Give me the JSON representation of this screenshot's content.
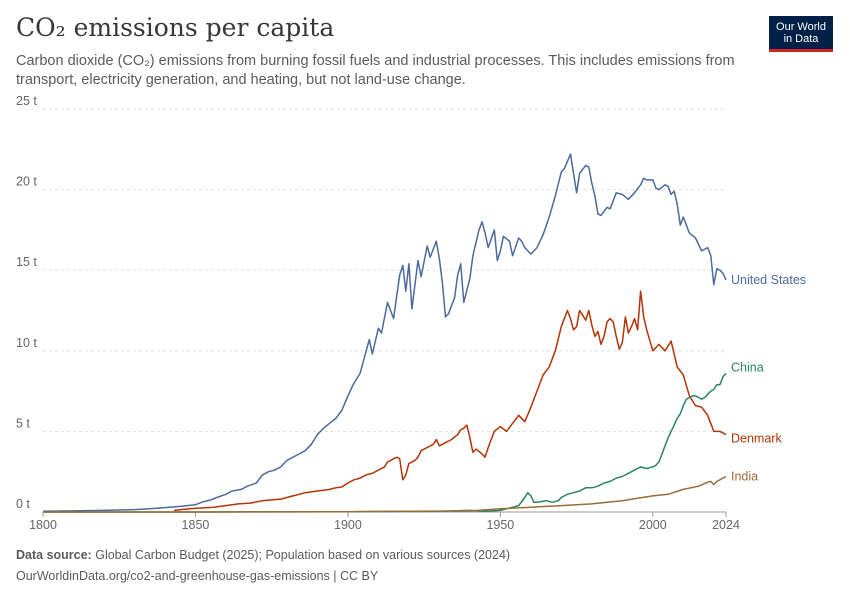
{
  "header": {
    "title": "CO₂ emissions per capita",
    "subtitle": "Carbon dioxide (CO₂) emissions from burning fossil fuels and industrial processes. This includes emissions from transport, electricity generation, and heating, but not land-use change.",
    "logo_line1": "Our World",
    "logo_line2": "in Data"
  },
  "footer": {
    "source_label": "Data source:",
    "source_text": "Global Carbon Budget (2025); Population based on various sources (2024)",
    "url_text": "OurWorldinData.org/co2-and-greenhouse-gas-emissions | CC BY"
  },
  "colors": {
    "United States": "#4c6a9c",
    "Denmark": "#b13507",
    "China": "#2c8465",
    "India": "#986d39",
    "grid": "#dddddd",
    "axis": "#666666"
  },
  "chart_data": {
    "type": "line",
    "title": "CO₂ emissions per capita",
    "xlim": [
      1800,
      2024
    ],
    "ylim": [
      0,
      25
    ],
    "yticks": [
      0,
      5,
      10,
      15,
      20,
      25
    ],
    "ytick_labels": [
      "0 t",
      "5 t",
      "10 t",
      "15 t",
      "20 t",
      "25 t"
    ],
    "xticks": [
      1800,
      1850,
      1900,
      1950,
      2000,
      2024
    ],
    "xtick_labels": [
      "1800",
      "1850",
      "1900",
      "1950",
      "2000",
      "2024"
    ],
    "grid": "horizontal dashed",
    "legend": "labels at line ends (right)",
    "series": [
      {
        "name": "United States",
        "x": [
          1800,
          1810,
          1820,
          1830,
          1835,
          1840,
          1845,
          1850,
          1852,
          1855,
          1857,
          1860,
          1862,
          1865,
          1867,
          1870,
          1872,
          1874,
          1876,
          1878,
          1880,
          1882,
          1884,
          1886,
          1888,
          1890,
          1892,
          1894,
          1896,
          1898,
          1900,
          1902,
          1904,
          1906,
          1907,
          1908,
          1910,
          1911,
          1913,
          1915,
          1916,
          1917,
          1918,
          1919,
          1920,
          1921,
          1923,
          1924,
          1926,
          1927,
          1929,
          1930,
          1931,
          1932,
          1933,
          1935,
          1936,
          1937,
          1938,
          1940,
          1941,
          1943,
          1944,
          1945,
          1946,
          1948,
          1949,
          1950,
          1951,
          1953,
          1954,
          1956,
          1957,
          1958,
          1960,
          1962,
          1964,
          1966,
          1968,
          1970,
          1971,
          1973,
          1974,
          1975,
          1976,
          1978,
          1979,
          1980,
          1981,
          1982,
          1983,
          1985,
          1986,
          1988,
          1990,
          1992,
          1994,
          1996,
          1997,
          1998,
          2000,
          2001,
          2002,
          2004,
          2005,
          2006,
          2007,
          2008,
          2009,
          2010,
          2012,
          2014,
          2016,
          2018,
          2019,
          2020,
          2021,
          2022,
          2023,
          2024
        ],
        "values": [
          0.05,
          0.07,
          0.1,
          0.15,
          0.2,
          0.27,
          0.35,
          0.45,
          0.6,
          0.75,
          0.9,
          1.1,
          1.3,
          1.4,
          1.6,
          1.8,
          2.3,
          2.5,
          2.6,
          2.8,
          3.2,
          3.4,
          3.6,
          3.8,
          4.2,
          4.8,
          5.2,
          5.5,
          5.8,
          6.3,
          7.2,
          8.0,
          8.6,
          10.0,
          10.7,
          9.8,
          11.4,
          11.1,
          13.0,
          12.0,
          13.4,
          14.7,
          15.3,
          13.7,
          15.4,
          12.6,
          15.6,
          14.6,
          16.5,
          15.8,
          16.8,
          15.7,
          14.2,
          12.1,
          12.3,
          13.3,
          14.7,
          15.4,
          13.0,
          14.5,
          15.9,
          17.5,
          18.0,
          17.3,
          16.4,
          17.5,
          15.6,
          16.2,
          17.1,
          16.8,
          15.9,
          17.0,
          16.8,
          16.4,
          16.0,
          16.4,
          17.2,
          18.3,
          19.6,
          21.1,
          21.3,
          22.2,
          21.0,
          19.8,
          21.0,
          21.5,
          21.4,
          20.4,
          19.6,
          18.5,
          18.4,
          18.9,
          18.8,
          19.8,
          19.7,
          19.4,
          19.8,
          20.3,
          20.7,
          20.6,
          20.6,
          20.1,
          20.0,
          20.3,
          20.2,
          19.7,
          19.9,
          19.1,
          17.8,
          18.3,
          17.3,
          17.0,
          16.2,
          16.4,
          15.9,
          14.1,
          15.1,
          15.0,
          14.8,
          14.4
        ]
      },
      {
        "name": "Denmark",
        "x": [
          1843,
          1848,
          1852,
          1856,
          1860,
          1864,
          1868,
          1872,
          1875,
          1878,
          1880,
          1882,
          1884,
          1886,
          1888,
          1890,
          1892,
          1894,
          1896,
          1898,
          1900,
          1902,
          1904,
          1906,
          1908,
          1910,
          1912,
          1913,
          1914,
          1916,
          1917,
          1918,
          1919,
          1920,
          1922,
          1923,
          1924,
          1926,
          1928,
          1929,
          1930,
          1932,
          1934,
          1936,
          1937,
          1938,
          1939,
          1940,
          1941,
          1942,
          1944,
          1945,
          1946,
          1947,
          1948,
          1950,
          1952,
          1954,
          1956,
          1958,
          1960,
          1962,
          1964,
          1966,
          1968,
          1970,
          1972,
          1973,
          1974,
          1975,
          1976,
          1977,
          1978,
          1979,
          1980,
          1981,
          1982,
          1983,
          1984,
          1985,
          1986,
          1987,
          1988,
          1989,
          1990,
          1991,
          1992,
          1993,
          1994,
          1995,
          1996,
          1997,
          1998,
          2000,
          2002,
          2004,
          2006,
          2008,
          2010,
          2012,
          2014,
          2016,
          2018,
          2020,
          2022,
          2024
        ],
        "values": [
          0.1,
          0.2,
          0.25,
          0.3,
          0.4,
          0.5,
          0.55,
          0.7,
          0.75,
          0.8,
          0.9,
          1.0,
          1.1,
          1.2,
          1.25,
          1.3,
          1.35,
          1.4,
          1.5,
          1.55,
          1.8,
          2.0,
          2.1,
          2.3,
          2.4,
          2.6,
          2.8,
          3.1,
          3.2,
          3.4,
          3.3,
          2.0,
          2.3,
          3.0,
          3.2,
          3.4,
          3.8,
          4.0,
          4.2,
          4.5,
          4.1,
          4.3,
          4.5,
          4.8,
          5.1,
          5.2,
          5.4,
          4.6,
          3.7,
          3.9,
          3.6,
          3.4,
          4.0,
          4.5,
          5.0,
          5.3,
          5.0,
          5.5,
          6.0,
          5.6,
          6.5,
          7.5,
          8.5,
          9.0,
          10.0,
          11.5,
          12.5,
          12.0,
          11.3,
          11.5,
          12.5,
          12.2,
          11.9,
          12.5,
          11.6,
          10.9,
          11.2,
          10.4,
          10.9,
          11.8,
          12.0,
          11.8,
          10.9,
          10.1,
          10.5,
          12.1,
          11.1,
          11.5,
          12.0,
          11.3,
          13.7,
          12.1,
          11.3,
          10.0,
          10.4,
          10.0,
          10.6,
          9.0,
          8.5,
          7.2,
          6.6,
          6.5,
          6.0,
          5.0,
          5.0,
          4.8
        ]
      },
      {
        "name": "China",
        "x": [
          1800,
          1850,
          1900,
          1910,
          1920,
          1930,
          1940,
          1945,
          1950,
          1952,
          1954,
          1956,
          1958,
          1959,
          1960,
          1961,
          1962,
          1965,
          1967,
          1969,
          1970,
          1972,
          1974,
          1976,
          1978,
          1980,
          1982,
          1984,
          1986,
          1988,
          1990,
          1992,
          1994,
          1996,
          1998,
          1999,
          2000,
          2001,
          2002,
          2003,
          2004,
          2005,
          2006,
          2007,
          2008,
          2009,
          2010,
          2011,
          2012,
          2013,
          2014,
          2015,
          2016,
          2017,
          2018,
          2019,
          2020,
          2021,
          2022,
          2023,
          2024
        ],
        "values": [
          0,
          0,
          0.02,
          0.03,
          0.04,
          0.05,
          0.1,
          0.05,
          0.1,
          0.2,
          0.3,
          0.4,
          0.9,
          1.2,
          1.0,
          0.6,
          0.6,
          0.7,
          0.6,
          0.7,
          0.9,
          1.1,
          1.2,
          1.3,
          1.5,
          1.5,
          1.6,
          1.8,
          1.9,
          2.1,
          2.2,
          2.4,
          2.6,
          2.8,
          2.7,
          2.75,
          2.8,
          2.9,
          3.1,
          3.6,
          4.1,
          4.6,
          5.0,
          5.4,
          5.8,
          6.1,
          6.6,
          7.0,
          7.1,
          7.2,
          7.2,
          7.1,
          7.0,
          7.1,
          7.3,
          7.5,
          7.6,
          7.9,
          7.9,
          8.4,
          8.6
        ]
      },
      {
        "name": "India",
        "x": [
          1800,
          1850,
          1900,
          1920,
          1940,
          1950,
          1955,
          1960,
          1965,
          1970,
          1975,
          1980,
          1985,
          1990,
          1995,
          2000,
          2005,
          2010,
          2015,
          2018,
          2019,
          2020,
          2021,
          2022,
          2023,
          2024
        ],
        "values": [
          0,
          0,
          0.02,
          0.05,
          0.06,
          0.2,
          0.25,
          0.3,
          0.35,
          0.4,
          0.45,
          0.5,
          0.6,
          0.7,
          0.85,
          1.0,
          1.1,
          1.4,
          1.6,
          1.85,
          1.9,
          1.7,
          1.9,
          2.0,
          2.1,
          2.2
        ]
      }
    ]
  }
}
